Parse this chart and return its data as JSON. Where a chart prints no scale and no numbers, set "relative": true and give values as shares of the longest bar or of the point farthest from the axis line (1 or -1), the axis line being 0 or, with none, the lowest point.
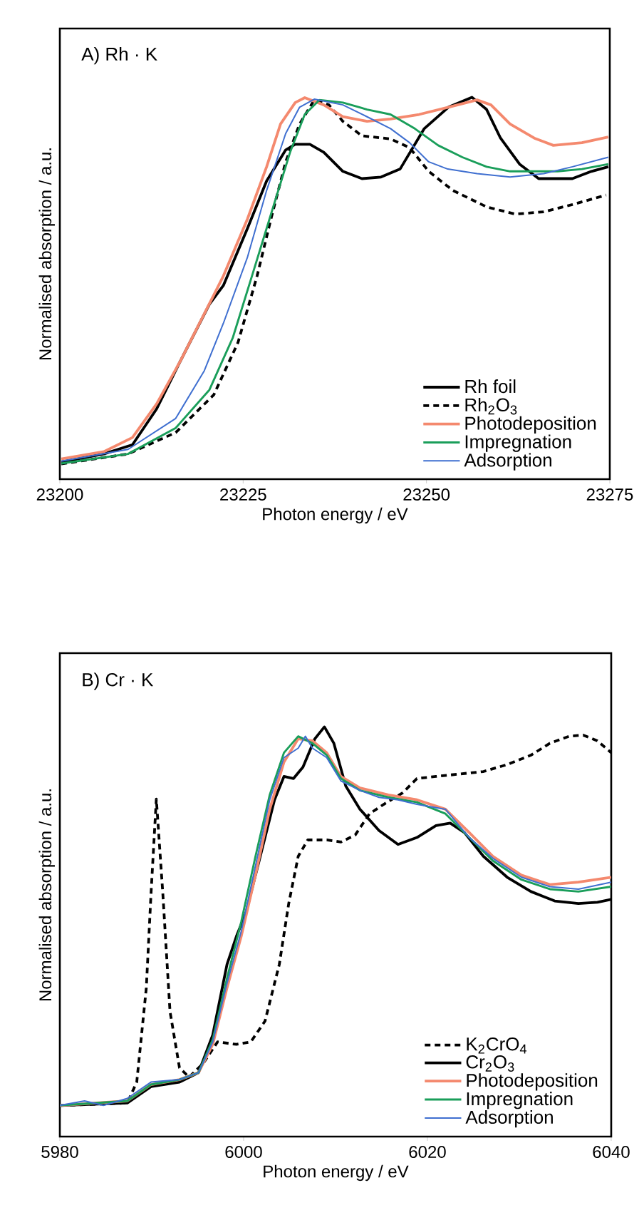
{
  "chart_data": [
    {
      "type": "line",
      "title": "A) Rh · K",
      "xlabel": "Photon energy / eV",
      "ylabel": "Normalised absorption / a.u.",
      "relative": true,
      "tick_labels": "x",
      "legend": "bottom right",
      "xlim": [
        23200,
        23275
      ],
      "xticks": [
        23200,
        23225,
        23250,
        23275
      ],
      "series": [
        {
          "name": "Rh foil",
          "color": "#000000",
          "line_style": "solid",
          "x": [
            23200.2,
            23206,
            23209.9,
            23213.2,
            23216.4,
            23220.4,
            23222.3,
            23225.6,
            23228.2,
            23230.8,
            23232.1,
            23234.1,
            23236,
            23238.6,
            23241.2,
            23243.8,
            23246.4,
            23249.7,
            23253,
            23256.2,
            23258.2,
            23260.1,
            23262.7,
            23265.3,
            23267.3,
            23269.9,
            23272.5,
            23274.8
          ],
          "values": [
            0.045,
            0.066,
            0.09,
            0.184,
            0.308,
            0.458,
            0.507,
            0.657,
            0.781,
            0.862,
            0.877,
            0.877,
            0.856,
            0.806,
            0.787,
            0.791,
            0.812,
            0.918,
            0.974,
            1,
            0.968,
            0.893,
            0.825,
            0.787,
            0.787,
            0.787,
            0.806,
            0.818
          ]
        },
        {
          "name": "Rh$_{2}$O$_{3}$",
          "color": "#000000",
          "line_style": "dashed",
          "x": [
            23200.2,
            23209.3,
            23215.8,
            23221,
            23224.3,
            23226.9,
            23228.8,
            23230.8,
            23232.7,
            23234.7,
            23236.7,
            23238.6,
            23241.2,
            23245.1,
            23247.7,
            23250.3,
            23253.6,
            23258.2,
            23262.1,
            23266,
            23269.9,
            23274.5
          ],
          "values": [
            0.04,
            0.066,
            0.122,
            0.221,
            0.358,
            0.532,
            0.682,
            0.831,
            0.93,
            0.993,
            0.98,
            0.937,
            0.899,
            0.891,
            0.868,
            0.806,
            0.756,
            0.713,
            0.694,
            0.7,
            0.719,
            0.744
          ]
        },
        {
          "name": "Photodeposition",
          "color": "#f4896e",
          "line_style": "solid",
          "x": [
            23200.2,
            23206,
            23209.9,
            23213.2,
            23216.4,
            23219.7,
            23222.3,
            23225.6,
            23228.2,
            23230.1,
            23232.1,
            23233.4,
            23236,
            23238.6,
            23241.9,
            23245.1,
            23249,
            23253,
            23256.9,
            23258.8,
            23261.4,
            23264.7,
            23267.3,
            23271.2,
            23274.8
          ],
          "values": [
            0.053,
            0.072,
            0.109,
            0.197,
            0.308,
            0.433,
            0.532,
            0.682,
            0.818,
            0.93,
            0.986,
            0.999,
            0.98,
            0.949,
            0.937,
            0.943,
            0.955,
            0.974,
            0.993,
            0.98,
            0.93,
            0.893,
            0.874,
            0.881,
            0.896
          ]
        },
        {
          "name": "Impregnation",
          "color": "#1a9e5a",
          "line_style": "solid",
          "x": [
            23200.2,
            23209.3,
            23215.8,
            23220.4,
            23223.6,
            23226.2,
            23228.8,
            23231.4,
            23233.4,
            23235.4,
            23238.6,
            23241.9,
            23245.1,
            23248.4,
            23251.6,
            23254.9,
            23258.2,
            23261.4,
            23264.7,
            23267.9,
            23271.2,
            23274.8
          ],
          "values": [
            0.041,
            0.066,
            0.134,
            0.234,
            0.371,
            0.532,
            0.694,
            0.856,
            0.955,
            0.993,
            0.986,
            0.968,
            0.955,
            0.918,
            0.874,
            0.843,
            0.818,
            0.806,
            0.806,
            0.806,
            0.812,
            0.825
          ]
        },
        {
          "name": "Adsorption",
          "color": "#3f6fd0",
          "line_style": "solid",
          "x": [
            23200.2,
            23209.3,
            23215.8,
            23219.7,
            23222.3,
            23225.6,
            23228.2,
            23230.8,
            23232.7,
            23234.7,
            23238.6,
            23241.9,
            23245.1,
            23247.7,
            23250.3,
            23252.9,
            23256.9,
            23261.4,
            23266,
            23269.9,
            23274.8
          ],
          "values": [
            0.047,
            0.078,
            0.159,
            0.284,
            0.408,
            0.582,
            0.756,
            0.905,
            0.974,
            0.995,
            0.98,
            0.949,
            0.918,
            0.881,
            0.831,
            0.812,
            0.8,
            0.791,
            0.8,
            0.818,
            0.843
          ]
        }
      ]
    },
    {
      "type": "line",
      "title": "B) Cr · K",
      "xlabel": "Photon energy / eV",
      "ylabel": "Normalised absorption / a.u.",
      "relative": true,
      "tick_labels": "x",
      "legend": "bottom right",
      "xlim": [
        5980,
        6040
      ],
      "xticks": [
        5980,
        6000,
        6020,
        6040
      ],
      "series": [
        {
          "name": "K$_{2}$CrO$_{4}$",
          "color": "#000000",
          "line_style": "dashed",
          "x": [
            5980,
            5987.34,
            5988.37,
            5989.41,
            5989.92,
            5990.5,
            5991.21,
            5991.99,
            5993.02,
            5994.06,
            5995.61,
            5997.16,
            5999.22,
            6000.78,
            6002.33,
            6003.88,
            6004.91,
            6005.94,
            6006.98,
            6009.04,
            6010.59,
            6012.14,
            6013.7,
            6015.25,
            6017.31,
            6018.86,
            6020.93,
            6023.51,
            6026.1,
            6028.68,
            6031.27,
            6033.33,
            6035.4,
            6036.95,
            6038.5,
            6040
          ],
          "values": [
            0.076,
            0.082,
            0.133,
            0.363,
            0.592,
            0.824,
            0.592,
            0.305,
            0.168,
            0.145,
            0.179,
            0.231,
            0.225,
            0.231,
            0.282,
            0.42,
            0.569,
            0.684,
            0.724,
            0.724,
            0.719,
            0.736,
            0.788,
            0.811,
            0.839,
            0.874,
            0.879,
            0.885,
            0.891,
            0.908,
            0.931,
            0.96,
            0.977,
            0.98,
            0.966,
            0.937
          ]
        },
        {
          "name": "Cr$_{2}$O$_{3}$",
          "color": "#000000",
          "line_style": "solid",
          "x": [
            5980,
            5987.34,
            5989.92,
            5993.02,
            5995.09,
            5996.64,
            5998.19,
            5999.22,
            6000.26,
            6001.81,
            6003.36,
            6004.39,
            6005.43,
            6006.46,
            6007.75,
            6008.79,
            6009.82,
            6011.11,
            6012.66,
            6014.73,
            6016.8,
            6018.86,
            6020.93,
            6022.48,
            6024.03,
            6026.1,
            6028.68,
            6031.27,
            6033.85,
            6036.43,
            6038.5,
            6040
          ],
          "values": [
            0.076,
            0.082,
            0.122,
            0.133,
            0.156,
            0.248,
            0.42,
            0.489,
            0.547,
            0.684,
            0.822,
            0.879,
            0.874,
            0.902,
            0.971,
            1.0,
            0.96,
            0.856,
            0.799,
            0.747,
            0.713,
            0.73,
            0.759,
            0.765,
            0.742,
            0.684,
            0.633,
            0.598,
            0.575,
            0.569,
            0.572,
            0.579
          ]
        },
        {
          "name": "Photodeposition",
          "color": "#f4896e",
          "line_style": "solid",
          "x": [
            5980,
            5987.34,
            5989.92,
            5993.02,
            5995.09,
            5996.64,
            5998.19,
            5999.74,
            6001.29,
            6002.84,
            6004.39,
            6005.94,
            6007.49,
            6009.04,
            6010.59,
            6012.66,
            6015.76,
            6018.86,
            6021.96,
            6024.55,
            6027.13,
            6030.23,
            6033.33,
            6036.43,
            6040
          ],
          "values": [
            0.076,
            0.087,
            0.127,
            0.139,
            0.156,
            0.225,
            0.363,
            0.489,
            0.638,
            0.799,
            0.914,
            0.971,
            0.966,
            0.937,
            0.879,
            0.851,
            0.834,
            0.822,
            0.799,
            0.742,
            0.684,
            0.638,
            0.615,
            0.621,
            0.633
          ]
        },
        {
          "name": "Impregnation",
          "color": "#1a9e5a",
          "line_style": "solid",
          "x": [
            5980,
            5987.34,
            5989.92,
            5993.02,
            5995.09,
            5996.64,
            5998.19,
            5999.74,
            6001.29,
            6002.84,
            6004.39,
            6005.94,
            6007.49,
            6009.04,
            6010.59,
            6012.66,
            6015.76,
            6018.86,
            6021.96,
            6024.55,
            6027.13,
            6030.23,
            6033.33,
            6036.43,
            6040
          ],
          "values": [
            0.076,
            0.087,
            0.127,
            0.139,
            0.156,
            0.237,
            0.386,
            0.524,
            0.684,
            0.834,
            0.937,
            0.977,
            0.96,
            0.931,
            0.874,
            0.845,
            0.828,
            0.816,
            0.788,
            0.73,
            0.673,
            0.627,
            0.604,
            0.598,
            0.61
          ]
        },
        {
          "name": "Adsorption",
          "color": "#3f6fd0",
          "line_style": "solid",
          "x": [
            5980,
            5982.69,
            5984.75,
            5987.34,
            5989.92,
            5993.02,
            5995.09,
            5996.64,
            5998.19,
            5999.74,
            6001.29,
            6002.84,
            6004.39,
            6005.94,
            6006.72,
            6007.49,
            6009.04,
            6010.59,
            6012.66,
            6014.73,
            6016.8,
            6018.86,
            6021.96,
            6024.55,
            6027.13,
            6030.23,
            6033.33,
            6036.43,
            6040
          ],
          "values": [
            0.076,
            0.087,
            0.076,
            0.093,
            0.133,
            0.139,
            0.156,
            0.231,
            0.374,
            0.501,
            0.661,
            0.822,
            0.925,
            0.948,
            0.977,
            0.948,
            0.925,
            0.868,
            0.845,
            0.828,
            0.822,
            0.811,
            0.799,
            0.73,
            0.679,
            0.633,
            0.61,
            0.604,
            0.621
          ]
        }
      ]
    }
  ]
}
